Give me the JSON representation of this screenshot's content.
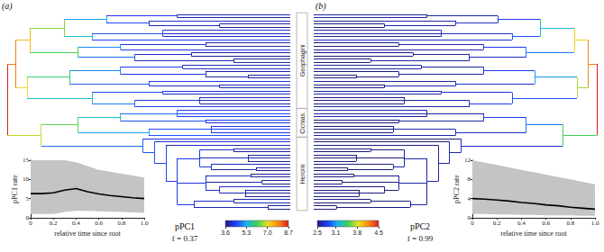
{
  "chart_data": [
    {
      "type": "tree",
      "titles": [
        "(a)",
        "(b)"
      ],
      "tree": [
        0,
        8.7,
        4.5,
        [
          0.03,
          8.0,
          4.2,
          [
            0.08,
            7.4,
            3.9,
            [
              0.2,
              6.5,
              3.2,
              [
                0.35,
                5.2,
                2.8,
                [
                  0.6,
                  4.3,
                  2.6,
                  [
                    4.0,
                    2.6
                  ],
                  [
                    3.9,
                    2.6
                  ]
                ],
                [
                  0.5,
                  4.5,
                  2.7,
                  [
                    4.1,
                    2.6
                  ],
                  [
                    0.75,
                    4.0,
                    2.6,
                    [
                      3.8,
                      2.5
                    ],
                    [
                      3.8,
                      2.5
                    ]
                  ]
                ]
              ],
              [
                0.3,
                5.5,
                2.9,
                [
                  0.55,
                  4.6,
                  2.7,
                  [
                    4.2,
                    2.6
                  ],
                  [
                    4.0,
                    2.6
                  ],
                  [
                    4.1,
                    2.6
                  ]
                ],
                [
                  4.4,
                  2.7
                ]
              ]
            ],
            [
              0.25,
              6.2,
              3.0,
              [
                0.4,
                5.0,
                2.8,
                [
                  0.7,
                  4.2,
                  2.6,
                  [
                    3.9,
                    2.5
                  ],
                  [
                    3.9,
                    2.5
                  ]
                ],
                [
                  4.3,
                  2.6
                ]
              ],
              [
                0.45,
                4.8,
                2.7,
                [
                  0.65,
                  4.1,
                  2.6,
                  [
                    3.8,
                    2.5
                  ],
                  [
                    3.7,
                    2.5
                  ]
                ],
                [
                  0.8,
                  4.0,
                  2.6,
                  [
                    3.8,
                    2.5
                  ],
                  [
                    3.9,
                    2.5
                  ]
                ]
              ]
            ]
          ],
          [
            0.07,
            7.1,
            3.7,
            [
              0.22,
              6.0,
              3.1,
              [
                0.4,
                5.0,
                2.8,
                [
                  0.62,
                  4.3,
                  2.6,
                  [
                    4.0,
                    2.6
                  ],
                  [
                    4.1,
                    2.6
                  ]
                ],
                [
                  0.7,
                  4.2,
                  2.6,
                  [
                    3.9,
                    2.5
                  ],
                  [
                    0.85,
                    3.9,
                    2.5,
                    [
                      3.8,
                      2.5
                    ],
                    [
                      3.8,
                      2.5
                    ]
                  ]
                ]
              ],
              [
                0.5,
                4.7,
                2.7,
                [
                  4.3,
                  2.6
                ],
                [
                  0.75,
                  4.1,
                  2.6,
                  [
                    3.9,
                    2.5
                  ],
                  [
                    4.0,
                    2.5
                  ]
                ]
              ]
            ],
            [
              0.3,
              5.6,
              2.9,
              [
                0.55,
                4.6,
                2.7,
                [
                  4.2,
                  2.6
                ],
                [
                  4.1,
                  2.6
                ]
              ],
              [
                0.45,
                4.9,
                2.8,
                [
                  0.68,
                  4.2,
                  2.6,
                  [
                    3.9,
                    2.5
                  ],
                  [
                    4.0,
                    2.5
                  ],
                  [
                    3.9,
                    2.5
                  ]
                ],
                [
                  4.4,
                  2.6
                ]
              ]
            ]
          ]
        ],
        [
          0.12,
          6.8,
          3.5,
          [
            0.25,
            6.3,
            3.0,
            [
              0.4,
              5.6,
              2.8,
              [
                0.6,
                4.8,
                2.6,
                [
                  4.4,
                  2.6
                ],
                [
                  4.5,
                  2.6
                ],
                [
                  4.3,
                  2.6
                ]
              ],
              [
                0.7,
                4.6,
                2.6,
                [
                  4.3,
                  2.5
                ],
                [
                  4.2,
                  2.5
                ]
              ]
            ],
            [
              0.5,
              5.2,
              2.7,
              [
                0.72,
                4.5,
                2.6,
                [
                  4.3,
                  2.5
                ],
                [
                  4.4,
                  2.5
                ],
                [
                  4.2,
                  2.5
                ]
              ],
              [
                4.6,
                2.6
              ]
            ]
          ],
          [
            0.48,
            4.8,
            2.7,
            [
              4.2,
              2.5
            ],
            [
              0.52,
              4.6,
              2.6,
              [
                4.1,
                2.5
              ],
              [
                0.56,
                4.5,
                2.6,
                [
                  4.0,
                  2.5
                ],
                [
                  0.6,
                  4.4,
                  2.6,
                  [
                    0.68,
                    4.3,
                    2.6,
                    [
                      0.8,
                      4.1,
                      2.5,
                      [
                        3.9,
                        2.5
                      ],
                      [
                        3.8,
                        2.5
                      ]
                    ],
                    [
                      0.85,
                      4.0,
                      2.5,
                      [
                        3.8,
                        2.5
                      ],
                      [
                        3.9,
                        2.5
                      ],
                      [
                        3.7,
                        2.5
                      ]
                    ],
                    [
                      0.72,
                      4.2,
                      2.6,
                      [
                        4.0,
                        2.5
                      ],
                      [
                        0.88,
                        3.9,
                        2.5,
                        [
                          3.8,
                          2.5
                        ],
                        [
                          3.7,
                          2.5
                        ]
                      ]
                    ]
                  ],
                  [
                    0.7,
                    4.2,
                    2.6,
                    [
                      0.86,
                      4.0,
                      2.5,
                      [
                        3.7,
                        2.5
                      ],
                      [
                        3.8,
                        2.5
                      ]
                    ],
                    [
                      0.9,
                      3.9,
                      2.5,
                      [
                        3.7,
                        2.5
                      ],
                      [
                        3.6,
                        2.5
                      ]
                    ],
                    [
                      0.75,
                      4.1,
                      2.5,
                      [
                        4.0,
                        2.5
                      ],
                      [
                        0.84,
                        3.9,
                        2.5,
                        [
                          3.8,
                          2.5
                        ],
                        [
                          3.7,
                          2.5
                        ],
                        [
                          3.8,
                          2.5
                        ]
                      ]
                    ]
                  ],
                  [
                    0.66,
                    4.3,
                    2.6,
                    [
                      0.8,
                      4.1,
                      2.5,
                      [
                        3.9,
                        2.5
                      ],
                      [
                        4.0,
                        2.5
                      ]
                    ],
                    [
                      0.92,
                      3.9,
                      2.5,
                      [
                        3.8,
                        2.5
                      ],
                      [
                        3.7,
                        2.5
                      ]
                    ]
                  ]
                ]
              ]
            ]
          ]
        ]
      ],
      "clades": [
        {
          "label": "Geophagini",
          "tips": 30
        },
        {
          "label": "Cichlas.",
          "tips": 9
        },
        {
          "label": "Heroini",
          "tips": 23
        }
      ],
      "colorbars": [
        {
          "range": [
            3.6,
            8.7
          ],
          "ticks": [
            3.6,
            5.3,
            {
              "value": 7.0,
              "label": "7.0"
            },
            8.7
          ]
        },
        {
          "range": [
            2.5,
            4.5
          ],
          "ticks": [
            2.5,
            3.1,
            3.8,
            4.5
          ]
        }
      ],
      "annotations": [
        [
          "pPC1",
          "f = 0.37"
        ],
        [
          "pPC2",
          "f = 0.99"
        ]
      ]
    },
    {
      "type": "line",
      "xlabel": "relative time since root",
      "ylabel": "pPC1 rate",
      "x": [
        0,
        0.1,
        0.2,
        0.3,
        0.4,
        0.5,
        0.6,
        0.7,
        0.8,
        0.9,
        1.0
      ],
      "values": [
        6.3,
        6.3,
        6.5,
        7.2,
        7.6,
        6.8,
        6.2,
        5.8,
        5.5,
        5.2,
        5.0
      ],
      "upper": [
        15,
        15,
        15,
        15,
        14.5,
        13.5,
        12.5,
        12,
        11.5,
        11,
        10.5
      ],
      "lower": [
        1,
        1,
        1,
        1.5,
        1.8,
        1.8,
        1.7,
        1.6,
        1.5,
        1.4,
        1.3
      ],
      "color": "#000000",
      "xlim": [
        0,
        1
      ],
      "ylim": [
        0,
        15
      ],
      "xticks": [
        0,
        0.2,
        0.4,
        0.6,
        0.8,
        {
          "value": 1,
          "label": "1.0"
        }
      ],
      "yticks": [
        0,
        5,
        10,
        15
      ]
    },
    {
      "type": "line",
      "xlabel": "relative time since root",
      "ylabel": "pPC2 rate",
      "x": [
        0,
        0.1,
        0.2,
        0.3,
        0.4,
        0.5,
        0.6,
        0.7,
        0.8,
        0.9,
        1.0
      ],
      "values": [
        4.0,
        3.9,
        3.7,
        3.5,
        3.2,
        3.0,
        2.7,
        2.5,
        2.2,
        2.0,
        1.8
      ],
      "upper": [
        12,
        11.5,
        11,
        10.5,
        10,
        9.5,
        9,
        8.5,
        8,
        7.5,
        7
      ],
      "lower": [
        0.8,
        0.8,
        0.7,
        0.7,
        0.6,
        0.6,
        0.5,
        0.5,
        0.5,
        0.4,
        0.4
      ],
      "color": "#000000",
      "xlim": [
        0,
        1
      ],
      "ylim": [
        0,
        12
      ],
      "xticks": [
        0,
        0.2,
        0.4,
        0.6,
        0.8,
        {
          "value": 1,
          "label": "1.0"
        }
      ],
      "yticks": [
        0,
        4,
        8,
        12
      ]
    }
  ]
}
